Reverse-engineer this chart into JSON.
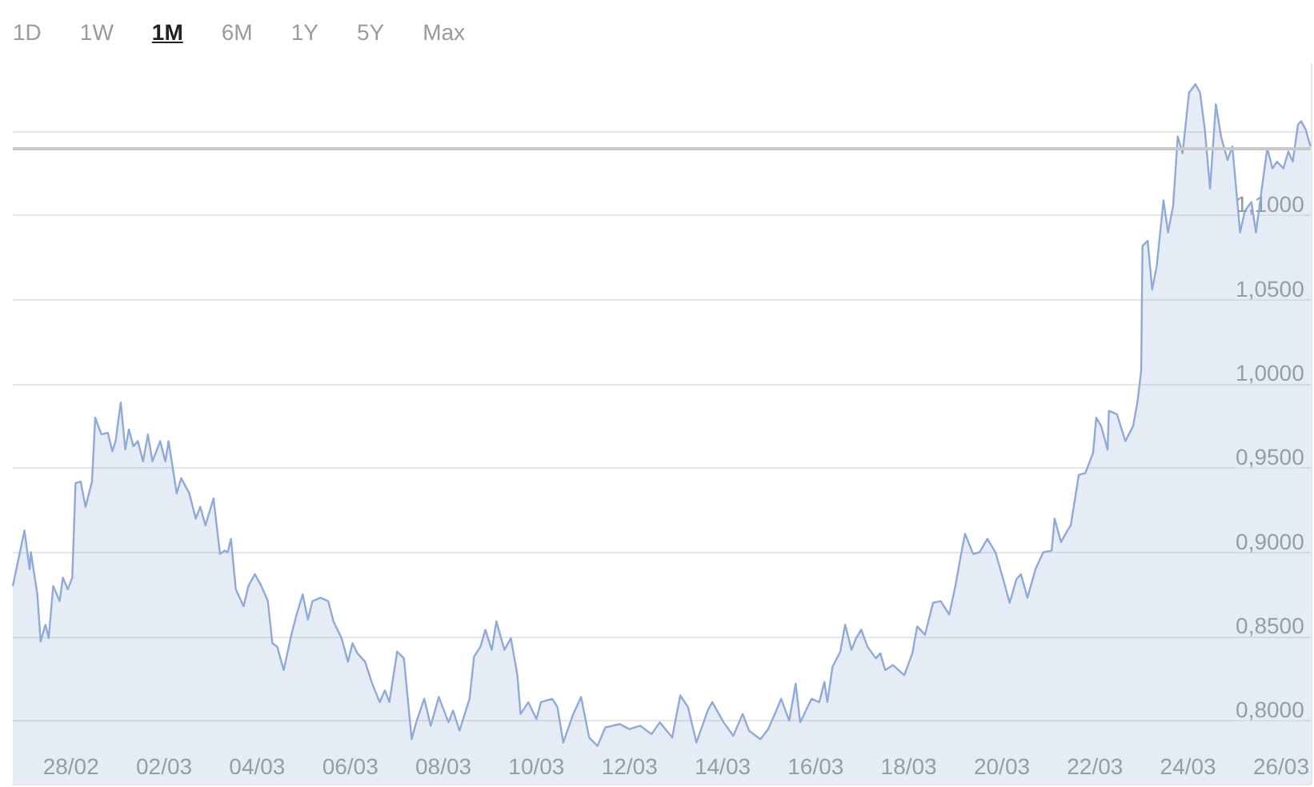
{
  "chart_data": {
    "type": "area",
    "annotations": [
      "1D",
      "1W",
      "1M",
      "6M",
      "1Y",
      "5Y",
      "Max"
    ],
    "xlim": [
      "--02-26T18:00",
      "--03-26T15:10"
    ],
    "ylim": [
      0.7625,
      1.19
    ],
    "xticks": [
      {
        "value": "--02-28",
        "label": "28/02"
      },
      {
        "value": "--03-02",
        "label": "02/03"
      },
      {
        "value": "--03-04",
        "label": "04/03"
      },
      {
        "value": "--03-06",
        "label": "06/03"
      },
      {
        "value": "--03-08",
        "label": "08/03"
      },
      {
        "value": "--03-10",
        "label": "10/03"
      },
      {
        "value": "--03-12",
        "label": "12/03"
      },
      {
        "value": "--03-14",
        "label": "14/03"
      },
      {
        "value": "--03-16",
        "label": "16/03"
      },
      {
        "value": "--03-18",
        "label": "18/03"
      },
      {
        "value": "--03-20",
        "label": "20/03"
      },
      {
        "value": "--03-22",
        "label": "22/03"
      },
      {
        "value": "--03-24",
        "label": "24/03"
      },
      {
        "value": "--03-26",
        "label": "26/03"
      }
    ],
    "yticks": [
      {
        "value": 0.8,
        "label": "0,8000"
      },
      {
        "value": 0.85,
        "label": "0,8500"
      },
      {
        "value": 0.9,
        "label": "0,9000"
      },
      {
        "value": 0.95,
        "label": "0,9500"
      },
      {
        "value": 1.0,
        "label": "1,0000"
      },
      {
        "value": 1.05,
        "label": "1,0500"
      },
      {
        "value": 1.1,
        "label": "1,1000"
      },
      {
        "value": 1.15,
        "label": null
      }
    ],
    "grid": "y",
    "marker": "none",
    "line_style": "solid",
    "ref_lines": [
      {
        "axis": "y",
        "value": 1.141,
        "color": "#c8c8c8"
      }
    ],
    "series": [
      {
        "color": "#8fa9d8",
        "x": [
          "--02-26T18:00",
          "--02-27T00:00",
          "--02-27T02:40",
          "--02-27T03:20",
          "--02-27T06:40",
          "--02-27T08:20",
          "--02-27T10:50",
          "--02-27T12:30",
          "--02-27T14:50",
          "--02-27T18:10",
          "--02-27T19:50",
          "--02-27T22:20",
          "--02-28T00:40",
          "--02-28T02:20",
          "--02-28T05:00",
          "--02-28T07:30",
          "--02-28T10:50",
          "--02-28T12:30",
          "--02-28T15:40",
          "--02-28T19:00",
          "--02-28T21:20",
          "--02-28T23:00",
          "--03-01T01:40",
          "--03-01T04:00",
          "--03-01T05:50",
          "--03-01T08:10",
          "--03-01T10:30",
          "--03-01T13:10",
          "--03-01T15:40",
          "--03-01T18:00",
          "--03-01T22:00",
          "--03-02T00:40",
          "--03-02T02:20",
          "--03-02T06:30",
          "--03-02T08:50",
          "--03-02T13:00",
          "--03-02T16:20",
          "--03-02T18:40",
          "--03-02T21:20",
          "--03-03T01:30",
          "--03-03T04:50",
          "--03-03T07:10",
          "--03-03T08:50",
          "--03-03T10:30",
          "--03-03T13:00",
          "--03-03T17:00",
          "--03-03T19:30",
          "--03-03T22:50",
          "--03-04T02:10",
          "--03-04T05:30",
          "--03-04T07:50",
          "--03-04T10:20",
          "--03-04T13:40",
          "--03-04T17:50",
          "--03-04T20:20",
          "--03-04T23:30",
          "--03-05T02:10",
          "--03-05T04:30",
          "--03-05T08:40",
          "--03-05T12:40",
          "--03-05T15:20",
          "--03-05T19:30",
          "--03-05T22:50",
          "--03-06T01:10",
          "--03-06T03:40",
          "--03-06T07:40",
          "--03-06T11:00",
          "--03-06T15:10",
          "--03-06T17:50",
          "--03-06T20:10",
          "--03-07T00:10",
          "--03-07T03:40",
          "--03-07T07:40",
          "--03-07T10:00",
          "--03-07T14:10",
          "--03-07T17:30",
          "--03-07T21:40",
          "--03-08T02:40",
          "--03-08T05:00",
          "--03-08T08:20",
          "--03-08T13:30",
          "--03-08T15:50",
          "--03-08T19:10",
          "--03-08T21:40",
          "--03-09T01:00",
          "--03-09T03:20",
          "--03-09T07:30",
          "--03-09T10:50",
          "--03-09T14:10",
          "--03-09T15:50",
          "--03-09T19:50",
          "--03-10T00:00",
          "--03-10T02:20",
          "--03-10T08:10",
          "--03-10T10:50",
          "--03-10T13:50",
          "--03-10T19:00",
          "--03-10T23:00",
          "--03-11T03:10",
          "--03-11T07:30",
          "--03-11T11:30",
          "--03-11T19:00",
          "--03-11T23:50",
          "--03-12T05:30",
          "--03-12T11:20",
          "--03-12T15:40",
          "--03-12T22:00",
          "--03-13T02:10",
          "--03-13T06:10",
          "--03-13T10:30",
          "--03-13T16:20",
          "--03-13T18:40",
          "--03-14T00:30",
          "--03-14T05:30",
          "--03-14T10:20",
          "--03-14T13:40",
          "--03-14T19:30",
          "--03-14T23:30",
          "--03-15T03:40",
          "--03-15T06:10",
          "--03-15T10:20",
          "--03-15T13:40",
          "--03-15T16:00",
          "--03-15T21:50",
          "--03-16T01:50",
          "--03-16T04:30",
          "--03-16T06:00",
          "--03-16T08:40",
          "--03-16T12:40",
          "--03-16T15:10",
          "--03-16T18:30",
          "--03-16T20:50",
          "--03-16T23:30",
          "--03-17T02:40",
          "--03-17T07:00",
          "--03-17T09:20",
          "--03-17T11:50",
          "--03-17T15:50",
          "--03-17T21:40",
          "--03-18T01:50",
          "--03-18T04:20",
          "--03-18T08:20",
          "--03-18T12:30",
          "--03-18T16:30",
          "--03-18T20:50",
          "--03-19T00:00",
          "--03-19T02:40",
          "--03-19T05:00",
          "--03-19T09:10",
          "--03-19T12:30",
          "--03-19T16:30",
          "--03-19T20:40",
          "--03-20T00:40",
          "--03-20T04:00",
          "--03-20T07:30",
          "--03-20T09:50",
          "--03-20T13:10",
          "--03-20T17:20",
          "--03-20T21:20",
          "--03-21T01:40",
          "--03-21T03:10",
          "--03-21T06:30",
          "--03-21T09:50",
          "--03-21T11:30",
          "--03-21T15:40",
          "--03-21T19:00",
          "--03-21T23:00",
          "--03-22T00:40",
          "--03-22T03:10",
          "--03-22T06:30",
          "--03-22T07:10",
          "--03-22T11:20",
          "--03-22T15:40",
          "--03-22T19:40",
          "--03-22T22:00",
          "--03-22T23:50",
          "--03-23T00:30",
          "--03-23T03:10",
          "--03-23T05:30",
          "--03-23T07:50",
          "--03-23T11:20",
          "--03-23T13:40",
          "--03-23T16:20",
          "--03-23T18:40",
          "--03-23T21:10",
          "--03-24T00:30",
          "--03-24T03:50",
          "--03-24T06:10",
          "--03-24T08:40",
          "--03-24T11:20",
          "--03-24T14:20",
          "--03-24T17:00",
          "--03-24T20:20",
          "--03-24T22:50",
          "--03-25T02:50",
          "--03-25T05:20",
          "--03-25T08:40",
          "--03-25T11:00",
          "--03-25T13:40",
          "--03-25T16:50",
          "--03-25T19:30",
          "--03-25T21:50",
          "--03-26T01:10",
          "--03-26T03:40",
          "--03-26T06:00",
          "--03-26T08:40",
          "--03-26T10:20",
          "--03-26T12:40",
          "--03-26T15:10"
        ],
        "values": [
          0.88,
          0.913,
          0.89,
          0.9,
          0.875,
          0.847,
          0.857,
          0.849,
          0.88,
          0.871,
          0.885,
          0.878,
          0.885,
          0.941,
          0.942,
          0.927,
          0.942,
          0.98,
          0.97,
          0.971,
          0.96,
          0.966,
          0.989,
          0.961,
          0.973,
          0.963,
          0.966,
          0.954,
          0.97,
          0.954,
          0.966,
          0.954,
          0.966,
          0.935,
          0.944,
          0.935,
          0.92,
          0.927,
          0.916,
          0.932,
          0.899,
          0.901,
          0.9,
          0.908,
          0.878,
          0.868,
          0.88,
          0.887,
          0.88,
          0.871,
          0.846,
          0.844,
          0.83,
          0.852,
          0.863,
          0.875,
          0.86,
          0.871,
          0.873,
          0.871,
          0.859,
          0.849,
          0.835,
          0.846,
          0.84,
          0.835,
          0.823,
          0.811,
          0.818,
          0.811,
          0.841,
          0.837,
          0.789,
          0.799,
          0.813,
          0.797,
          0.814,
          0.799,
          0.806,
          0.794,
          0.813,
          0.838,
          0.844,
          0.854,
          0.842,
          0.859,
          0.842,
          0.849,
          0.827,
          0.804,
          0.811,
          0.801,
          0.811,
          0.813,
          0.808,
          0.787,
          0.804,
          0.814,
          0.79,
          0.785,
          0.796,
          0.798,
          0.795,
          0.797,
          0.792,
          0.799,
          0.79,
          0.815,
          0.808,
          0.787,
          0.806,
          0.811,
          0.799,
          0.791,
          0.804,
          0.794,
          0.789,
          0.795,
          0.806,
          0.813,
          0.8,
          0.822,
          0.799,
          0.813,
          0.811,
          0.823,
          0.811,
          0.832,
          0.841,
          0.857,
          0.842,
          0.849,
          0.854,
          0.844,
          0.837,
          0.84,
          0.83,
          0.833,
          0.827,
          0.84,
          0.856,
          0.851,
          0.87,
          0.871,
          0.863,
          0.88,
          0.897,
          0.911,
          0.899,
          0.9,
          0.908,
          0.9,
          0.884,
          0.87,
          0.884,
          0.887,
          0.873,
          0.89,
          0.9,
          0.901,
          0.92,
          0.906,
          0.913,
          0.916,
          0.946,
          0.947,
          0.959,
          0.98,
          0.975,
          0.961,
          0.984,
          0.982,
          0.966,
          0.975,
          0.99,
          1.008,
          1.082,
          1.085,
          1.056,
          1.07,
          1.109,
          1.09,
          1.106,
          1.147,
          1.137,
          1.173,
          1.178,
          1.173,
          1.151,
          1.116,
          1.166,
          1.147,
          1.133,
          1.141,
          1.09,
          1.103,
          1.108,
          1.09,
          1.113,
          1.14,
          1.128,
          1.132,
          1.128,
          1.138,
          1.132,
          1.154,
          1.156,
          1.151,
          1.141
        ]
      }
    ]
  }
}
